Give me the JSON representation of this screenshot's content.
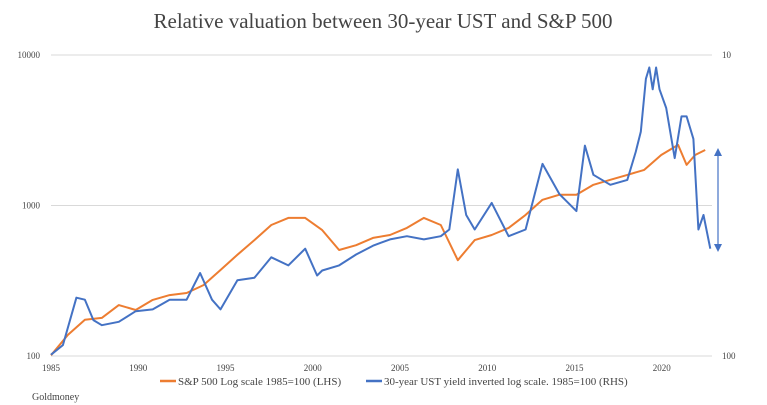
{
  "chart_data": {
    "type": "line",
    "title": "Relative valuation between 30-year UST and S&P 500",
    "x_range": [
      1985,
      2024
    ],
    "x_ticks": [
      1985,
      1990,
      1995,
      2000,
      2005,
      2010,
      2015,
      2020
    ],
    "y_left": {
      "scale": "log",
      "range": [
        100,
        10000
      ],
      "ticks": [
        "100",
        "1000",
        "10000"
      ]
    },
    "y_right": {
      "scale": "log",
      "inverted": true,
      "range": [
        100,
        10
      ],
      "ticks": [
        "100",
        "10"
      ]
    },
    "grid": true,
    "legend_position": "bottom",
    "series": [
      {
        "name": "S&P 500 Log scale 1985=100 (LHS)",
        "color": "#ED7D31",
        "axis": "left",
        "x": [
          1985,
          1986,
          1987,
          1988,
          1989,
          1990,
          1991,
          1992,
          1993,
          1994,
          1995,
          1996,
          1997,
          1998,
          1999,
          2000,
          2001,
          2002,
          2003,
          2004,
          2005,
          2006,
          2007,
          2008,
          2009,
          2010,
          2011,
          2012,
          2013,
          2014,
          2015,
          2016,
          2017,
          2018,
          2019,
          2020,
          2021,
          2022,
          2022.5,
          2023,
          2023.6
        ],
        "y": [
          101,
          138,
          174,
          179,
          218,
          202,
          236,
          254,
          262,
          296,
          373,
          470,
          589,
          742,
          827,
          827,
          686,
          506,
          545,
          609,
          637,
          710,
          827,
          742,
          433,
          589,
          637,
          710,
          866,
          1091,
          1179,
          1179,
          1373,
          1481,
          1596,
          1723,
          2166,
          2527,
          1860,
          2166,
          2336
        ]
      },
      {
        "name": "30-year UST yield inverted log scale. 1985=100 (RHS)",
        "color": "#4472C4",
        "axis": "right",
        "x": [
          1985,
          1985.7,
          1986.5,
          1987,
          1987.5,
          1988,
          1989,
          1990,
          1991,
          1992,
          1993,
          1993.8,
          1994.5,
          1995,
          1996,
          1997,
          1998,
          1999,
          2000,
          2000.7,
          2001,
          2002,
          2003,
          2004,
          2005,
          2006,
          2007,
          2008,
          2008.5,
          2009,
          2009.5,
          2010,
          2011,
          2012,
          2013,
          2014,
          2015,
          2016,
          2016.5,
          2017,
          2018,
          2019,
          2019.5,
          2019.8,
          2020.1,
          2020.3,
          2020.5,
          2020.7,
          2020.9,
          2021.3,
          2021.8,
          2022.2,
          2022.5,
          2022.9,
          2023.2,
          2023.5,
          2023.9
        ],
        "y": [
          99,
          92,
          64,
          65,
          76,
          79,
          77,
          71,
          70,
          65,
          65,
          53,
          65,
          70,
          56,
          55,
          47,
          50,
          44,
          54,
          52,
          50,
          46,
          43,
          41,
          40,
          41,
          40,
          38,
          24,
          34,
          38,
          31,
          40,
          38,
          23,
          29,
          33,
          20,
          25,
          27,
          26,
          21,
          18,
          12,
          11,
          13,
          11,
          13,
          15,
          22,
          16,
          16,
          19,
          38,
          34,
          44
        ]
      }
    ],
    "source": "Goldmoney"
  }
}
